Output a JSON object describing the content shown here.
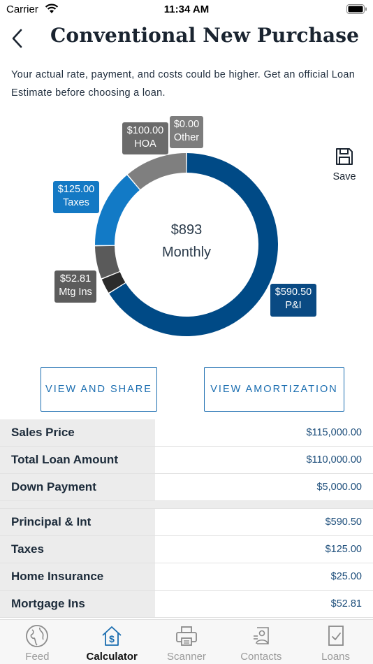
{
  "status_bar": {
    "carrier": "Carrier",
    "time": "11:34 AM"
  },
  "header": {
    "title": "Conventional New Purchase"
  },
  "disclaimer": "Your actual rate, payment, and costs could be higher. Get an official Loan Estimate before choosing a loan.",
  "save_label": "Save",
  "chart_data": {
    "type": "pie",
    "center_amount": "$893",
    "center_label": "Monthly",
    "series": [
      {
        "name": "P&I",
        "value": 590.5,
        "label": "$590.50",
        "color": "#004a86"
      },
      {
        "name": "Home Insurance",
        "value": 25.0,
        "color": "#2b2b2b"
      },
      {
        "name": "Mtg Ins",
        "value": 52.81,
        "label": "$52.81",
        "color": "#5a5a5a"
      },
      {
        "name": "Taxes",
        "value": 125.0,
        "label": "$125.00",
        "color": "#127ac6"
      },
      {
        "name": "HOA",
        "value": 100.0,
        "label": "$100.00",
        "color": "#7f7f7f"
      },
      {
        "name": "Other",
        "value": 0.0,
        "label": "$0.00",
        "color": "#8a8a8a"
      }
    ]
  },
  "buttons": {
    "share": "VIEW AND SHARE",
    "amortization": "VIEW AMORTIZATION"
  },
  "table": {
    "group1": [
      {
        "label": "Sales Price",
        "value": "$115,000.00"
      },
      {
        "label": "Total Loan Amount",
        "value": "$110,000.00"
      },
      {
        "label": "Down Payment",
        "value": "$5,000.00"
      }
    ],
    "group2": [
      {
        "label": "Principal & Int",
        "value": "$590.50"
      },
      {
        "label": "Taxes",
        "value": "$125.00"
      },
      {
        "label": "Home Insurance",
        "value": "$25.00"
      },
      {
        "label": "Mortgage Ins",
        "value": "$52.81"
      }
    ]
  },
  "tabs": [
    {
      "label": "Feed",
      "icon": "globe-icon"
    },
    {
      "label": "Calculator",
      "icon": "house-dollar-icon",
      "active": true
    },
    {
      "label": "Scanner",
      "icon": "printer-icon"
    },
    {
      "label": "Contacts",
      "icon": "contacts-icon"
    },
    {
      "label": "Loans",
      "icon": "document-check-icon"
    }
  ]
}
